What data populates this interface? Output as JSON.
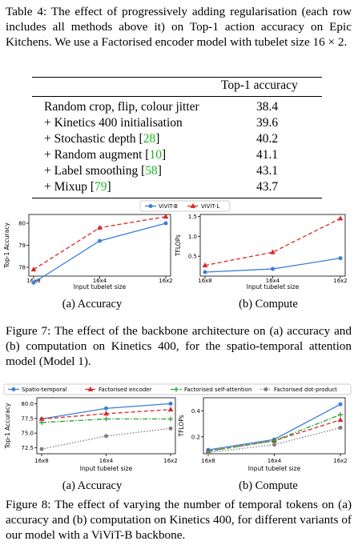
{
  "table4": {
    "caption": "Table 4: The effect of progressively adding regularisation (each row includes all methods above it) on Top-1 action accuracy on Epic Kitchens. We use a Factorised encoder model with tubelet size 16 × 2.",
    "header": "Top-1 accuracy",
    "rows": [
      {
        "pre": "Random crop, flip, colour jitter",
        "ref": "",
        "post": "",
        "value": "38.4"
      },
      {
        "pre": "+ Kinetics 400 initialisation",
        "ref": "",
        "post": "",
        "value": "39.6"
      },
      {
        "pre": "+ Stochastic depth [",
        "ref": "28",
        "post": "]",
        "value": "40.2"
      },
      {
        "pre": "+ Random augment [",
        "ref": "10",
        "post": "]",
        "value": "41.1"
      },
      {
        "pre": "+ Label smoothing [",
        "ref": "58",
        "post": "]",
        "value": "43.1"
      },
      {
        "pre": "+ Mixup [",
        "ref": "79",
        "post": "]",
        "value": "43.7"
      }
    ],
    "ref_color": "#1fb51f"
  },
  "figure7": {
    "caption": "Figure 7: The effect of the backbone architecture on (a) accuracy and (b) computation on Kinetics 400, for the spatio-temporal attention model (Model 1).",
    "subcaption_a": "(a) Accuracy",
    "subcaption_b": "(b) Compute"
  },
  "figure8": {
    "caption": "Figure 8: The effect of varying the number of temporal tokens on (a) accuracy and (b) computation on Kinetics 400, for different variants of our model with a ViViT-B backbone.",
    "subcaption_a": "(a) Accuracy",
    "subcaption_b": "(b) Compute"
  },
  "chart_data": [
    {
      "id": "fig7a",
      "type": "line",
      "categories": [
        "16x8",
        "16x4",
        "16x2"
      ],
      "xlabel": "Input tubelet size",
      "ylabel": "Top-1 Accuracy",
      "ylim": [
        77.6,
        80.4
      ],
      "yticks": [
        "78",
        "79",
        "80"
      ],
      "legend": "top",
      "series": [
        {
          "name": "ViViT-B",
          "values": [
            77.3,
            79.2,
            80.0
          ],
          "color": "#3b7ddd",
          "style": "solid",
          "marker": "dot"
        },
        {
          "name": "ViViT-L",
          "values": [
            77.9,
            79.8,
            80.3
          ],
          "color": "#d62728",
          "style": "dashed",
          "marker": "triangle"
        }
      ]
    },
    {
      "id": "fig7b",
      "type": "line",
      "categories": [
        "16x8",
        "16x4",
        "16x2"
      ],
      "xlabel": "Input tubelet size",
      "ylabel": "TFLOPs",
      "ylim": [
        0.0,
        1.55
      ],
      "yticks": [
        "0.5",
        "1.0",
        "1.5"
      ],
      "series": [
        {
          "name": "ViViT-B",
          "values": [
            0.1,
            0.18,
            0.45
          ],
          "color": "#3b7ddd",
          "style": "solid",
          "marker": "dot"
        },
        {
          "name": "ViViT-L",
          "values": [
            0.27,
            0.6,
            1.45
          ],
          "color": "#d62728",
          "style": "dashed",
          "marker": "triangle"
        }
      ]
    },
    {
      "id": "fig8a",
      "type": "line",
      "categories": [
        "16x8",
        "16x4",
        "16x2"
      ],
      "xlabel": "Input tubelet size",
      "ylabel": "Top-1 Accuracy",
      "ylim": [
        71.5,
        81.0
      ],
      "yticks": [
        "72.5",
        "75.0",
        "77.5",
        "80.0"
      ],
      "legend": "top",
      "series": [
        {
          "name": "Spatio-temporal",
          "values": [
            77.4,
            79.2,
            80.0
          ],
          "color": "#3b7ddd",
          "style": "solid",
          "marker": "dot"
        },
        {
          "name": "Factorised encoder",
          "values": [
            77.4,
            78.3,
            79.0
          ],
          "color": "#d62728",
          "style": "dashed",
          "marker": "triangle"
        },
        {
          "name": "Factorised self-attention",
          "values": [
            76.8,
            77.4,
            77.4
          ],
          "color": "#2ca02c",
          "style": "dashdot",
          "marker": "plus"
        },
        {
          "name": "Factorised dot-product",
          "values": [
            72.3,
            74.5,
            75.8
          ],
          "color": "#7f7f7f",
          "style": "dotted",
          "marker": "dot"
        }
      ]
    },
    {
      "id": "fig8b",
      "type": "line",
      "categories": [
        "16x8",
        "16x4",
        "16x2"
      ],
      "xlabel": "Input tubelet size",
      "ylabel": "TFLOPs",
      "ylim": [
        0.07,
        0.5
      ],
      "yticks": [
        "0.2",
        "0.4"
      ],
      "series": [
        {
          "name": "Spatio-temporal",
          "values": [
            0.1,
            0.18,
            0.45
          ],
          "color": "#3b7ddd",
          "style": "solid",
          "marker": "dot"
        },
        {
          "name": "Factorised encoder",
          "values": [
            0.09,
            0.17,
            0.33
          ],
          "color": "#d62728",
          "style": "dashed",
          "marker": "triangle"
        },
        {
          "name": "Factorised self-attention",
          "values": [
            0.09,
            0.17,
            0.37
          ],
          "color": "#2ca02c",
          "style": "dashdot",
          "marker": "plus"
        },
        {
          "name": "Factorised dot-product",
          "values": [
            0.08,
            0.14,
            0.27
          ],
          "color": "#7f7f7f",
          "style": "dotted",
          "marker": "dot"
        }
      ]
    }
  ]
}
